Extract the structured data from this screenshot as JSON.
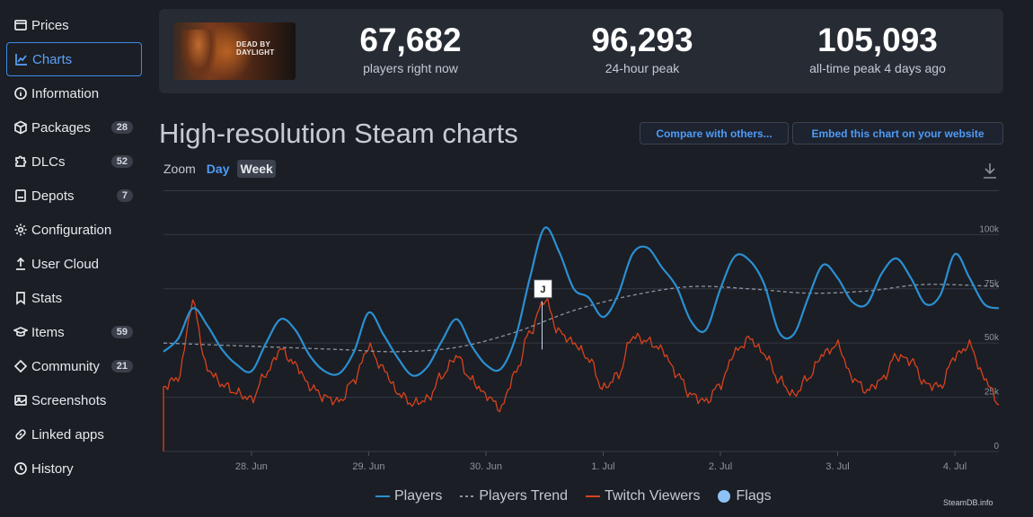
{
  "sidebar": {
    "items": [
      {
        "label": "Prices",
        "icon": "wallet-icon",
        "badge": null,
        "active": false
      },
      {
        "label": "Charts",
        "icon": "chart-icon",
        "badge": null,
        "active": true
      },
      {
        "label": "Information",
        "icon": "info-icon",
        "badge": null,
        "active": false
      },
      {
        "label": "Packages",
        "icon": "package-icon",
        "badge": "28",
        "active": false
      },
      {
        "label": "DLCs",
        "icon": "puzzle-icon",
        "badge": "52",
        "active": false
      },
      {
        "label": "Depots",
        "icon": "server-icon",
        "badge": "7",
        "active": false
      },
      {
        "label": "Configuration",
        "icon": "gear-icon",
        "badge": null,
        "active": false
      },
      {
        "label": "User Cloud",
        "icon": "upload-icon",
        "badge": null,
        "active": false
      },
      {
        "label": "Stats",
        "icon": "bookmark-icon",
        "badge": null,
        "active": false
      },
      {
        "label": "Items",
        "icon": "mortarboard-icon",
        "badge": "59",
        "active": false
      },
      {
        "label": "Community",
        "icon": "diamond-icon",
        "badge": "21",
        "active": false
      },
      {
        "label": "Screenshots",
        "icon": "image-icon",
        "badge": null,
        "active": false
      },
      {
        "label": "Linked apps",
        "icon": "link-icon",
        "badge": null,
        "active": false
      },
      {
        "label": "History",
        "icon": "history-icon",
        "badge": null,
        "active": false
      }
    ]
  },
  "game": {
    "thumb_logo_line1": "DEAD BY",
    "thumb_logo_line2": "DAYLIGHT"
  },
  "stats": {
    "now_value": "67,682",
    "now_label": "players right now",
    "peak24_value": "96,293",
    "peak24_label": "24-hour peak",
    "alltime_value": "105,093",
    "alltime_label": "all-time peak 4 days ago"
  },
  "page": {
    "title": "High-resolution Steam charts",
    "compare_button": "Compare with others...",
    "embed_button": "Embed this chart on your website",
    "zoom_label": "Zoom",
    "zoom_day": "Day",
    "zoom_week": "Week",
    "credit": "SteamDB.info"
  },
  "legend": {
    "players": "Players",
    "trend": "Players Trend",
    "twitch": "Twitch Viewers",
    "flags": "Flags"
  },
  "colors": {
    "players": "#2b8fd1",
    "trend": "#8d93a0",
    "twitch": "#d9421c",
    "flags": "#8cc3f4",
    "accent": "#4d9cf7"
  },
  "chart_data": {
    "type": "line",
    "x_ticks": [
      "28. Jun",
      "29. Jun",
      "30. Jun",
      "1. Jul",
      "2. Jul",
      "3. Jul",
      "4. Jul"
    ],
    "y_ticks": [
      "0",
      "25k",
      "50k",
      "75k",
      "100k"
    ],
    "ylim": [
      0,
      100000
    ],
    "flag": {
      "label": "J",
      "date": "2024-06-30T21:30",
      "value": 75000
    },
    "series": [
      {
        "name": "Players",
        "t_hours": [
          0,
          3,
          6,
          9,
          12,
          15,
          18,
          21,
          24,
          27,
          30,
          33,
          36,
          39,
          42,
          45,
          48,
          51,
          54,
          57,
          60,
          63,
          66,
          69,
          72,
          75,
          78,
          81,
          84,
          87,
          90,
          93,
          96,
          99,
          102,
          105,
          108,
          111,
          114,
          117,
          120,
          123,
          126,
          129,
          132,
          135,
          138,
          141,
          144,
          147,
          150,
          153,
          156,
          159,
          162,
          165,
          168,
          171
        ],
        "values": [
          46000,
          52000,
          66000,
          58000,
          47000,
          40000,
          37000,
          50000,
          61000,
          56000,
          44000,
          37000,
          36000,
          46000,
          64000,
          54000,
          43000,
          35000,
          39000,
          51000,
          61000,
          49000,
          40000,
          38000,
          52000,
          80000,
          103000,
          92000,
          75000,
          71000,
          62000,
          72000,
          91000,
          94000,
          85000,
          76000,
          60000,
          56000,
          75000,
          90000,
          88000,
          77000,
          55000,
          54000,
          71000,
          86000,
          80000,
          69000,
          68000,
          82000,
          89000,
          80000,
          68000,
          72000,
          91000,
          80000,
          68000,
          66000
        ]
      },
      {
        "name": "Players Trend",
        "t_hours": [
          0,
          12,
          24,
          36,
          48,
          60,
          72,
          84,
          96,
          108,
          120,
          132,
          144,
          156,
          171
        ],
        "values": [
          50000,
          49000,
          48000,
          47000,
          46000,
          48000,
          55000,
          65000,
          72000,
          76000,
          75000,
          73000,
          74000,
          77000,
          76000
        ]
      },
      {
        "name": "Twitch Viewers",
        "t_hours": [
          0,
          3,
          6,
          9,
          12,
          15,
          18,
          21,
          24,
          27,
          30,
          33,
          36,
          39,
          42,
          45,
          48,
          51,
          54,
          57,
          60,
          63,
          66,
          69,
          72,
          75,
          78,
          81,
          84,
          87,
          90,
          93,
          96,
          99,
          102,
          105,
          108,
          111,
          114,
          117,
          120,
          123,
          126,
          129,
          132,
          135,
          138,
          141,
          144,
          147,
          150,
          153,
          156,
          159,
          162,
          165,
          168,
          171
        ],
        "values": [
          30000,
          34000,
          68000,
          38000,
          31000,
          27000,
          24000,
          36000,
          47000,
          40000,
          30000,
          25000,
          23000,
          33000,
          48000,
          38000,
          27000,
          22000,
          24000,
          35000,
          44000,
          33000,
          26000,
          20000,
          36000,
          55000,
          70000,
          55000,
          50000,
          43000,
          29000,
          35000,
          53000,
          51000,
          47000,
          36000,
          26000,
          23000,
          31000,
          46000,
          52000,
          45000,
          33000,
          26000,
          34000,
          45000,
          49000,
          34000,
          28000,
          33000,
          44000,
          42000,
          31000,
          30000,
          44000,
          49000,
          34000,
          22000
        ]
      }
    ]
  }
}
